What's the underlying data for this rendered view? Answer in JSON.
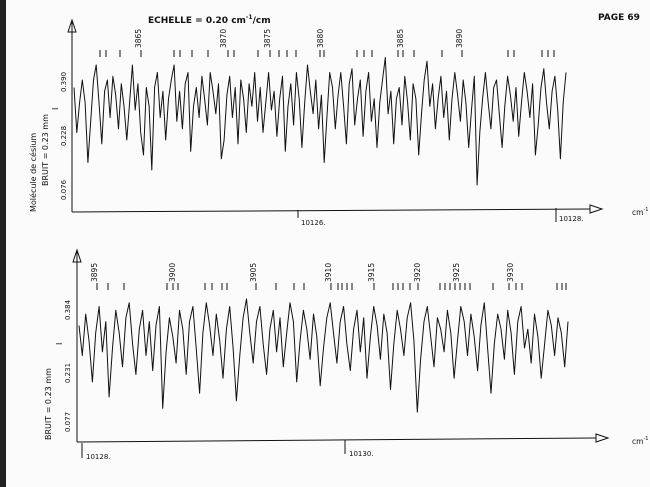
{
  "header": {
    "scale_label": "ECHELLE = 0.20 cm",
    "scale_sup": "-1",
    "scale_suffix": "/cm",
    "page_label": "PAGE 69"
  },
  "panels": [
    {
      "side_label_molecule": "Molécule de césium",
      "side_label_noise": "BRUIT = 0.23 mm",
      "side_label_i": "I",
      "unit": "cm",
      "unit_sup": "-1",
      "y_ticks": [
        "0.390",
        "0.228",
        "0.076"
      ],
      "x_ticks": [
        "10126.",
        "10128."
      ]
    },
    {
      "side_label_noise": "BRUIT = 0.23 mm",
      "side_label_i": "I",
      "unit": "cm",
      "unit_sup": "-1",
      "y_ticks": [
        "0.384",
        "0.231",
        "0.077"
      ],
      "x_ticks": [
        "10128.",
        "10130."
      ]
    }
  ],
  "chart_data": [
    {
      "type": "line",
      "title": "",
      "xlabel": "cm-1",
      "ylabel": "I",
      "x_range": [
        10124.5,
        10128.3
      ],
      "y_ticks": [
        0.39,
        0.228,
        0.076
      ],
      "ylim": [
        0.0,
        0.52
      ],
      "wavenumber_marks": [
        "3865",
        "3870",
        "3875",
        "3880",
        "3885",
        "3890"
      ],
      "series": [
        {
          "values": [
            0.34,
            0.22,
            0.3,
            0.36,
            0.3,
            0.14,
            0.25,
            0.36,
            0.4,
            0.3,
            0.19,
            0.33,
            0.36,
            0.26,
            0.37,
            0.32,
            0.23,
            0.35,
            0.29,
            0.2,
            0.3,
            0.4,
            0.28,
            0.35,
            0.22,
            0.16,
            0.34,
            0.29,
            0.12,
            0.34,
            0.38,
            0.26,
            0.33,
            0.2,
            0.31,
            0.36,
            0.4,
            0.25,
            0.33,
            0.23,
            0.35,
            0.38,
            0.17,
            0.29,
            0.34,
            0.26,
            0.37,
            0.31,
            0.24,
            0.38,
            0.33,
            0.27,
            0.35,
            0.15,
            0.2,
            0.32,
            0.37,
            0.26,
            0.34,
            0.19,
            0.36,
            0.31,
            0.22,
            0.35,
            0.29,
            0.38,
            0.25,
            0.34,
            0.22,
            0.3,
            0.38,
            0.28,
            0.33,
            0.21,
            0.31,
            0.37,
            0.17,
            0.29,
            0.35,
            0.24,
            0.38,
            0.31,
            0.18,
            0.3,
            0.4,
            0.33,
            0.27,
            0.36,
            0.23,
            0.32,
            0.14,
            0.26,
            0.38,
            0.34,
            0.23,
            0.32,
            0.38,
            0.29,
            0.19,
            0.35,
            0.39,
            0.24,
            0.31,
            0.36,
            0.21,
            0.33,
            0.38,
            0.25,
            0.31,
            0.18,
            0.3,
            0.36,
            0.42,
            0.27,
            0.33,
            0.19,
            0.31,
            0.34,
            0.24,
            0.37,
            0.3,
            0.2,
            0.35,
            0.31,
            0.16,
            0.27,
            0.36,
            0.41,
            0.29,
            0.35,
            0.23,
            0.31,
            0.37,
            0.26,
            0.33,
            0.2,
            0.31,
            0.38,
            0.32,
            0.25,
            0.36,
            0.3,
            0.18,
            0.28,
            0.37,
            0.08,
            0.22,
            0.31,
            0.38,
            0.3,
            0.23,
            0.34,
            0.36,
            0.27,
            0.18,
            0.29,
            0.37,
            0.32,
            0.25,
            0.34,
            0.21,
            0.3,
            0.38,
            0.33,
            0.26,
            0.35,
            0.16,
            0.24,
            0.34,
            0.39,
            0.3,
            0.23,
            0.33,
            0.37,
            0.28,
            0.15,
            0.3,
            0.38
          ]
        }
      ]
    },
    {
      "type": "line",
      "title": "",
      "xlabel": "cm-1",
      "ylabel": "I",
      "x_range": [
        10127.9,
        10132.0
      ],
      "y_ticks": [
        0.384,
        0.231,
        0.077
      ],
      "ylim": [
        0.0,
        0.52
      ],
      "wavenumber_marks": [
        "3895",
        "3900",
        "3905",
        "3910",
        "3915",
        "3920",
        "3925",
        "3930"
      ],
      "series": [
        {
          "values": [
            0.32,
            0.24,
            0.35,
            0.28,
            0.17,
            0.3,
            0.37,
            0.25,
            0.33,
            0.13,
            0.26,
            0.36,
            0.3,
            0.21,
            0.34,
            0.38,
            0.27,
            0.19,
            0.31,
            0.36,
            0.24,
            0.33,
            0.2,
            0.32,
            0.37,
            0.1,
            0.25,
            0.34,
            0.29,
            0.22,
            0.36,
            0.31,
            0.19,
            0.33,
            0.37,
            0.26,
            0.14,
            0.3,
            0.38,
            0.32,
            0.24,
            0.35,
            0.28,
            0.18,
            0.31,
            0.37,
            0.26,
            0.12,
            0.24,
            0.34,
            0.39,
            0.3,
            0.22,
            0.33,
            0.37,
            0.27,
            0.19,
            0.31,
            0.36,
            0.25,
            0.34,
            0.21,
            0.3,
            0.38,
            0.33,
            0.17,
            0.28,
            0.36,
            0.31,
            0.23,
            0.35,
            0.29,
            0.16,
            0.26,
            0.34,
            0.38,
            0.3,
            0.22,
            0.33,
            0.37,
            0.27,
            0.2,
            0.31,
            0.36,
            0.25,
            0.34,
            0.18,
            0.29,
            0.37,
            0.32,
            0.23,
            0.35,
            0.3,
            0.15,
            0.27,
            0.36,
            0.31,
            0.24,
            0.34,
            0.38,
            0.28,
            0.09,
            0.23,
            0.33,
            0.37,
            0.29,
            0.21,
            0.34,
            0.31,
            0.25,
            0.36,
            0.3,
            0.18,
            0.28,
            0.37,
            0.33,
            0.24,
            0.35,
            0.29,
            0.2,
            0.32,
            0.38,
            0.26,
            0.14,
            0.27,
            0.35,
            0.31,
            0.23,
            0.36,
            0.3,
            0.19,
            0.33,
            0.37,
            0.26,
            0.31,
            0.22,
            0.35,
            0.29,
            0.18,
            0.27,
            0.36,
            0.32,
            0.24,
            0.34,
            0.3,
            0.21,
            0.33
          ]
        }
      ]
    }
  ]
}
